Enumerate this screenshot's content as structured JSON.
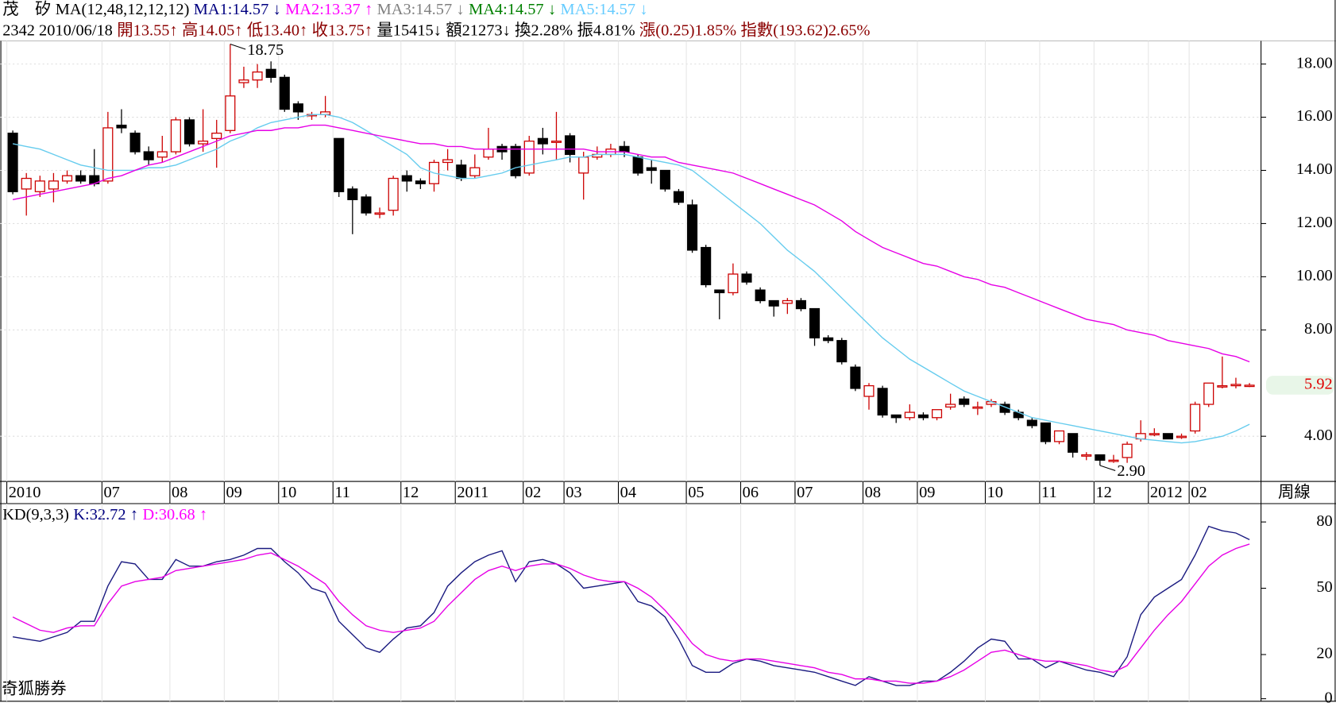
{
  "chart_data": [
    {
      "type": "candlestick",
      "info_lines": [
        [
          {
            "text": "茂　矽",
            "color": "#000000"
          },
          {
            "text": "MA(12,48,12,12,12)",
            "color": "#000000"
          },
          {
            "text": "MA1:14.57",
            "color": "#000080"
          },
          {
            "text": "↓",
            "color": "#000080"
          },
          {
            "text": "MA2:13.37",
            "color": "#ff00ff"
          },
          {
            "text": "↑",
            "color": "#ff00ff"
          },
          {
            "text": "MA3:14.57",
            "color": "#808080"
          },
          {
            "text": "↓",
            "color": "#808080"
          },
          {
            "text": "MA4:14.57",
            "color": "#008000"
          },
          {
            "text": "↓",
            "color": "#008000"
          },
          {
            "text": "MA5:14.57",
            "color": "#66ccff"
          },
          {
            "text": "↓",
            "color": "#66ccff"
          }
        ],
        [
          {
            "text": "2342 2010/06/18",
            "color": "#000000"
          },
          {
            "text": "開13.55↑",
            "color": "#8b0000"
          },
          {
            "text": "高14.05↑",
            "color": "#8b0000"
          },
          {
            "text": "低13.40↑",
            "color": "#8b0000"
          },
          {
            "text": "收13.75↑",
            "color": "#8b0000"
          },
          {
            "text": "量15415↓",
            "color": "#000000"
          },
          {
            "text": "額21273↓",
            "color": "#000000"
          },
          {
            "text": "換2.28%",
            "color": "#000000"
          },
          {
            "text": "振4.81%",
            "color": "#000000"
          },
          {
            "text": "漲(0.25)1.85%",
            "color": "#8b0000"
          },
          {
            "text": "指數(193.62)2.65%",
            "color": "#8b0000"
          }
        ]
      ],
      "period_label": "周線",
      "categories": [
        "2010",
        null,
        null,
        null,
        null,
        null,
        null,
        "07",
        null,
        null,
        null,
        null,
        "08",
        null,
        null,
        null,
        "09",
        null,
        null,
        null,
        "10",
        null,
        null,
        null,
        "11",
        null,
        null,
        null,
        null,
        "12",
        null,
        null,
        null,
        "2011",
        null,
        null,
        null,
        null,
        "02",
        null,
        null,
        "03",
        null,
        null,
        null,
        "04",
        null,
        null,
        null,
        null,
        "05",
        null,
        null,
        null,
        "06",
        null,
        null,
        null,
        "07",
        null,
        null,
        null,
        null,
        "08",
        null,
        null,
        null,
        "09",
        null,
        null,
        null,
        null,
        "10",
        null,
        null,
        null,
        "11",
        null,
        null,
        null,
        "12",
        null,
        null,
        null,
        "2012",
        null,
        null,
        "02",
        null,
        null,
        null,
        null
      ],
      "open": [
        15.4,
        13.3,
        13.2,
        13.3,
        13.6,
        13.8,
        13.8,
        13.6,
        15.7,
        15.4,
        14.7,
        14.5,
        14.7,
        15.9,
        15.0,
        15.2,
        15.5,
        17.3,
        17.4,
        17.8,
        17.5,
        16.5,
        16.1,
        16.1,
        15.2,
        13.3,
        13.0,
        12.4,
        12.5,
        13.8,
        13.6,
        13.5,
        14.3,
        14.2,
        13.8,
        14.5,
        14.9,
        14.9,
        13.9,
        15.2,
        15.1,
        15.3,
        13.9,
        14.5,
        14.6,
        14.9,
        14.5,
        14.1,
        14.0,
        13.2,
        12.7,
        11.1,
        9.5,
        9.4,
        10.1,
        9.5,
        9.1,
        9.0,
        9.1,
        8.8,
        7.7,
        7.6,
        6.6,
        5.5,
        5.8,
        4.8,
        4.7,
        4.8,
        4.7,
        5.1,
        5.4,
        5.1,
        5.2,
        5.2,
        4.9,
        4.6,
        4.5,
        3.8,
        4.1,
        3.3,
        3.3,
        3.1,
        3.2,
        3.9,
        4.1,
        4.1,
        4.0,
        4.2,
        5.2,
        5.9,
        5.9,
        5.9
      ],
      "high": [
        15.5,
        13.9,
        13.8,
        13.9,
        14.0,
        14.0,
        14.8,
        16.2,
        16.3,
        15.5,
        14.9,
        15.3,
        16.0,
        16.0,
        16.3,
        15.9,
        18.75,
        17.9,
        18.0,
        18.1,
        17.6,
        16.6,
        16.2,
        16.8,
        15.2,
        13.4,
        13.1,
        12.6,
        13.8,
        14.0,
        13.7,
        14.4,
        14.8,
        14.4,
        14.6,
        15.6,
        15.0,
        15.0,
        15.3,
        15.6,
        16.2,
        15.4,
        14.7,
        14.9,
        15.0,
        15.1,
        14.6,
        14.4,
        14.0,
        13.3,
        12.9,
        11.2,
        9.5,
        10.5,
        10.2,
        9.6,
        9.1,
        9.2,
        9.2,
        8.8,
        7.8,
        7.7,
        6.7,
        6.0,
        5.9,
        4.8,
        5.2,
        4.9,
        5.0,
        5.6,
        5.5,
        5.3,
        5.4,
        5.3,
        5.0,
        4.7,
        4.5,
        4.2,
        4.1,
        3.4,
        3.3,
        3.3,
        3.8,
        4.6,
        4.3,
        4.1,
        4.1,
        5.3,
        6.0,
        7.0,
        6.2,
        6.0
      ],
      "low": [
        13.1,
        12.3,
        13.0,
        12.8,
        13.5,
        13.5,
        13.4,
        13.5,
        15.4,
        14.6,
        14.2,
        14.3,
        14.6,
        14.9,
        14.7,
        14.1,
        15.4,
        17.1,
        17.1,
        17.3,
        16.2,
        15.9,
        15.9,
        16.0,
        13.0,
        11.6,
        12.3,
        12.2,
        12.3,
        13.2,
        13.3,
        13.2,
        14.0,
        13.6,
        13.7,
        14.4,
        14.4,
        13.7,
        13.8,
        14.6,
        14.4,
        14.3,
        12.9,
        14.4,
        14.5,
        14.5,
        13.8,
        13.5,
        13.2,
        12.7,
        10.9,
        9.6,
        8.4,
        9.3,
        9.7,
        9.0,
        8.5,
        8.6,
        8.7,
        7.4,
        7.5,
        6.7,
        5.7,
        5.0,
        4.7,
        4.5,
        4.6,
        4.6,
        4.6,
        5.0,
        5.1,
        4.8,
        5.1,
        4.8,
        4.6,
        4.3,
        3.7,
        3.7,
        3.2,
        3.1,
        2.9,
        3.0,
        3.0,
        3.8,
        4.0,
        3.9,
        3.9,
        4.1,
        5.1,
        5.8,
        5.8,
        5.85
      ],
      "close": [
        13.2,
        13.7,
        13.6,
        13.6,
        13.8,
        13.6,
        13.5,
        15.6,
        15.6,
        14.7,
        14.4,
        14.7,
        15.9,
        15.0,
        15.1,
        15.4,
        16.8,
        17.4,
        17.7,
        17.5,
        16.3,
        16.2,
        16.1,
        16.2,
        13.2,
        12.9,
        12.4,
        12.4,
        13.7,
        13.6,
        13.5,
        14.3,
        14.4,
        13.7,
        14.1,
        14.8,
        14.7,
        13.8,
        15.1,
        15.0,
        15.1,
        14.6,
        14.5,
        14.6,
        14.8,
        14.7,
        13.9,
        14.0,
        13.3,
        12.8,
        11.0,
        9.7,
        9.4,
        10.1,
        9.8,
        9.1,
        8.9,
        9.1,
        8.8,
        7.7,
        7.6,
        6.8,
        5.8,
        5.9,
        4.8,
        4.7,
        4.9,
        4.7,
        5.0,
        5.2,
        5.2,
        5.1,
        5.3,
        4.9,
        4.7,
        4.4,
        3.8,
        4.2,
        3.4,
        3.3,
        3.1,
        3.1,
        3.7,
        4.1,
        4.1,
        3.9,
        4.0,
        5.2,
        6.0,
        5.9,
        5.95,
        5.92
      ],
      "up_color": "#cc0000",
      "down_color": "#000000",
      "series": [
        {
          "color": "#66ccee",
          "values": [
            15.0,
            14.9,
            14.8,
            14.6,
            14.4,
            14.2,
            14.1,
            14.0,
            14.0,
            14.0,
            14.1,
            14.1,
            14.2,
            14.4,
            14.6,
            14.8,
            15.1,
            15.3,
            15.6,
            15.8,
            15.9,
            16.0,
            16.1,
            16.1,
            16.0,
            15.8,
            15.5,
            15.2,
            14.9,
            14.6,
            14.1,
            13.9,
            13.8,
            13.7,
            13.7,
            13.8,
            13.9,
            14.1,
            14.2,
            14.3,
            14.4,
            14.5,
            14.5,
            14.6,
            14.6,
            14.6,
            14.5,
            14.4,
            14.3,
            14.2,
            14.0,
            13.6,
            13.2,
            12.8,
            12.4,
            12.0,
            11.5,
            11.0,
            10.6,
            10.2,
            9.7,
            9.2,
            8.7,
            8.2,
            7.7,
            7.3,
            6.9,
            6.6,
            6.3,
            6.0,
            5.7,
            5.5,
            5.3,
            5.1,
            4.9,
            4.7,
            4.6,
            4.5,
            4.4,
            4.3,
            4.2,
            4.1,
            4.0,
            3.9,
            3.85,
            3.8,
            3.75,
            3.8,
            3.9,
            4.0,
            4.2,
            4.45
          ]
        },
        {
          "color": "#e600e6",
          "values": [
            12.9,
            13.0,
            13.1,
            13.2,
            13.3,
            13.4,
            13.5,
            13.7,
            13.8,
            14.0,
            14.2,
            14.3,
            14.5,
            14.7,
            14.9,
            15.1,
            15.3,
            15.4,
            15.5,
            15.5,
            15.6,
            15.6,
            15.7,
            15.7,
            15.6,
            15.5,
            15.4,
            15.3,
            15.2,
            15.1,
            15.0,
            15.0,
            14.9,
            14.9,
            14.8,
            14.8,
            14.8,
            14.8,
            14.8,
            14.8,
            14.8,
            14.8,
            14.8,
            14.7,
            14.7,
            14.7,
            14.6,
            14.5,
            14.5,
            14.3,
            14.2,
            14.1,
            14.0,
            13.9,
            13.7,
            13.5,
            13.3,
            13.1,
            12.9,
            12.7,
            12.4,
            12.1,
            11.7,
            11.4,
            11.1,
            10.9,
            10.7,
            10.5,
            10.4,
            10.2,
            10.0,
            9.9,
            9.7,
            9.6,
            9.4,
            9.2,
            9.0,
            8.8,
            8.6,
            8.4,
            8.3,
            8.2,
            8.0,
            7.9,
            7.8,
            7.6,
            7.5,
            7.4,
            7.3,
            7.1,
            7.0,
            6.8
          ]
        }
      ],
      "annotations": [
        {
          "index": 16,
          "value": 18.75,
          "label": "18.75"
        },
        {
          "index": 80,
          "value": 2.9,
          "label": "2.90"
        }
      ],
      "last_price": {
        "value": 5.92,
        "label": "5.92"
      },
      "ylim": [
        2.3,
        18.87
      ],
      "yticks": [
        {
          "value": 4,
          "label": "4.00"
        },
        {
          "value": 8,
          "label": "8.00"
        },
        {
          "value": 10,
          "label": "10.00"
        },
        {
          "value": 12,
          "label": "12.00"
        },
        {
          "value": 14,
          "label": "14.00"
        },
        {
          "value": 16,
          "label": "16.00"
        },
        {
          "value": 18,
          "label": "18.00"
        }
      ],
      "grid": true
    },
    {
      "type": "line",
      "info_line": [
        {
          "text": "KD(9,3,3)",
          "color": "#000000"
        },
        {
          "text": "K:32.72",
          "color": "#000080"
        },
        {
          "text": "↑",
          "color": "#000080"
        },
        {
          "text": "D:30.68",
          "color": "#ff00ff"
        },
        {
          "text": "↑",
          "color": "#ff00ff"
        }
      ],
      "watermark": "奇狐勝券",
      "series": [
        {
          "color": "#1a1a80",
          "values": [
            28,
            27,
            26,
            28,
            30,
            35,
            35,
            51,
            62,
            61,
            54,
            54,
            63,
            60,
            60,
            62,
            63,
            65,
            68,
            68,
            62,
            57,
            50,
            48,
            35,
            29,
            23,
            21,
            27,
            32,
            33,
            39,
            51,
            57,
            62,
            65,
            67,
            53,
            62,
            63,
            61,
            57,
            50,
            51,
            52,
            53,
            44,
            42,
            37,
            27,
            15,
            12,
            12,
            16,
            18,
            17,
            15,
            14,
            13,
            12,
            10,
            8,
            6,
            10,
            8,
            6,
            6,
            8,
            8,
            12,
            17,
            23,
            27,
            26,
            18,
            18,
            14,
            17,
            15,
            13,
            12,
            10,
            19,
            38,
            46,
            50,
            54,
            65,
            78,
            76,
            75,
            72
          ]
        },
        {
          "color": "#e600e6",
          "values": [
            37,
            34,
            31,
            30,
            32,
            33,
            33,
            43,
            51,
            53,
            54,
            55,
            58,
            59,
            60,
            61,
            62,
            63,
            65,
            66,
            63,
            60,
            56,
            52,
            44,
            38,
            33,
            31,
            30,
            31,
            32,
            35,
            42,
            48,
            54,
            58,
            60,
            58,
            60,
            61,
            61,
            59,
            56,
            54,
            53,
            53,
            50,
            46,
            40,
            33,
            25,
            20,
            18,
            17,
            18,
            18,
            17,
            16,
            15,
            14,
            12,
            11,
            9,
            9,
            8,
            8,
            7,
            7,
            8,
            10,
            13,
            17,
            21,
            22,
            20,
            18,
            17,
            17,
            16,
            15,
            13,
            12,
            15,
            23,
            31,
            38,
            44,
            52,
            60,
            65,
            68,
            70
          ]
        }
      ],
      "ylim": [
        0,
        86
      ],
      "yticks": [
        0,
        20,
        50,
        80
      ]
    }
  ]
}
